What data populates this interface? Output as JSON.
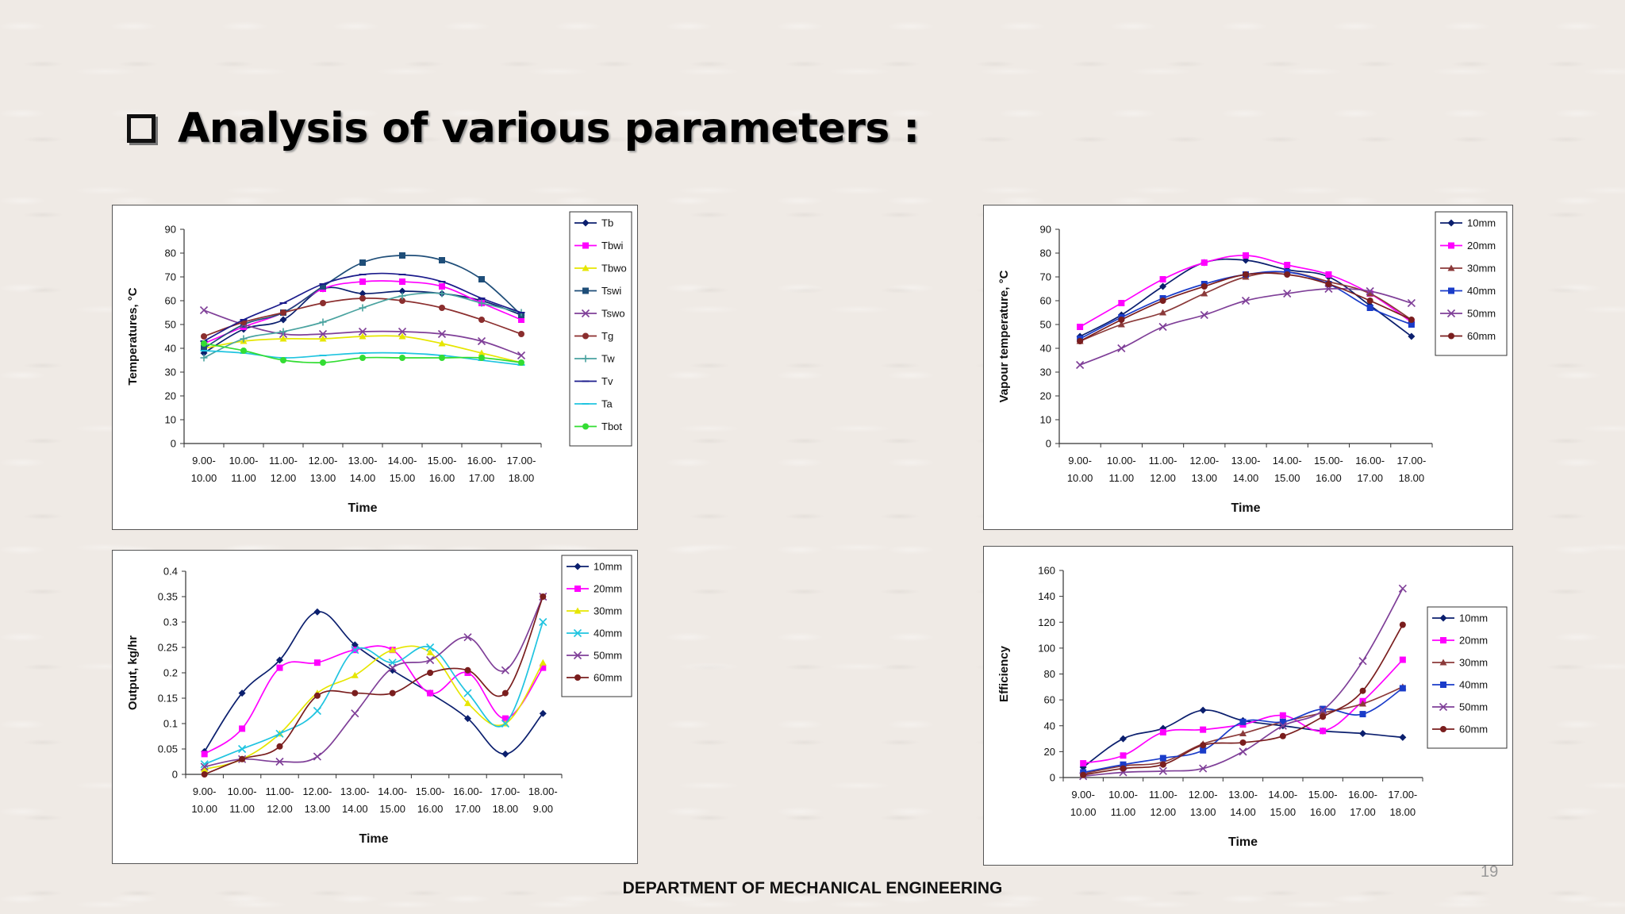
{
  "slide": {
    "title": "Analysis of various parameters :",
    "footer": "DEPARTMENT OF MECHANICAL ENGINEERING",
    "page_number": "19"
  },
  "chart_data": [
    {
      "id": "temps",
      "type": "line",
      "ylabel": "Temperatures, °C",
      "xlabel": "Time",
      "ylim": [
        0,
        90
      ],
      "yticks": [
        0,
        10,
        20,
        30,
        40,
        50,
        60,
        70,
        80,
        90
      ],
      "categories": [
        "9.00-10.00",
        "10.00-11.00",
        "11.00-12.00",
        "12.00-13.00",
        "13.00-14.00",
        "14.00-15.00",
        "15.00-16.00",
        "16.00-17.00",
        "17.00-18.00"
      ],
      "legend_position": "right",
      "series": [
        {
          "name": "Tb",
          "color": "#0b1f6e",
          "marker": "diamond",
          "values": [
            38,
            48,
            52,
            65,
            63,
            64,
            63,
            60,
            54
          ]
        },
        {
          "name": "Tbwi",
          "color": "#ff00ff",
          "marker": "square",
          "values": [
            42,
            49,
            55,
            65,
            68,
            68,
            66,
            59,
            52
          ]
        },
        {
          "name": "Tbwo",
          "color": "#e6e600",
          "marker": "triangle",
          "values": [
            40,
            43,
            44,
            44,
            45,
            45,
            42,
            38,
            34
          ]
        },
        {
          "name": "Tswi",
          "color": "#1f4e79",
          "marker": "square",
          "values": [
            40,
            50,
            55,
            66,
            76,
            79,
            77,
            69,
            54
          ]
        },
        {
          "name": "Tswo",
          "color": "#7f3f98",
          "marker": "x",
          "values": [
            56,
            50,
            46,
            46,
            47,
            47,
            46,
            43,
            37
          ]
        },
        {
          "name": "Tg",
          "color": "#8b2e2e",
          "marker": "circle",
          "values": [
            45,
            51,
            55,
            59,
            61,
            60,
            57,
            52,
            46
          ]
        },
        {
          "name": "Tw",
          "color": "#4aa3a0",
          "marker": "plus",
          "values": [
            36,
            44,
            47,
            51,
            57,
            62,
            63,
            59,
            55
          ]
        },
        {
          "name": "Tv",
          "color": "#1c1c8c",
          "marker": "dash",
          "values": [
            43,
            52,
            59,
            67,
            71,
            71,
            68,
            61,
            55
          ]
        },
        {
          "name": "Ta",
          "color": "#20c4e0",
          "marker": "dash",
          "values": [
            39,
            38,
            36,
            37,
            38,
            38,
            37,
            35,
            33
          ]
        },
        {
          "name": "Tbot",
          "color": "#33dd33",
          "marker": "circle",
          "values": [
            42,
            39,
            35,
            34,
            36,
            36,
            36,
            36,
            34
          ]
        }
      ]
    },
    {
      "id": "vapour",
      "type": "line",
      "ylabel": "Vapour temperature, °C",
      "xlabel": "Time",
      "ylim": [
        0,
        90
      ],
      "yticks": [
        0,
        10,
        20,
        30,
        40,
        50,
        60,
        70,
        80,
        90
      ],
      "categories": [
        "9.00-10.00",
        "10.00-11.00",
        "11.00-12.00",
        "12.00-13.00",
        "13.00-14.00",
        "14.00-15.00",
        "15.00-16.00",
        "16.00-17.00",
        "17.00-18.00"
      ],
      "legend_position": "right",
      "series": [
        {
          "name": "10mm",
          "color": "#0b1f6e",
          "marker": "diamond",
          "values": [
            45,
            54,
            66,
            76,
            77,
            73,
            70,
            58,
            45
          ]
        },
        {
          "name": "20mm",
          "color": "#ff00ff",
          "marker": "square",
          "values": [
            49,
            59,
            69,
            76,
            79,
            75,
            71,
            63,
            51
          ]
        },
        {
          "name": "30mm",
          "color": "#8b3a3a",
          "marker": "triangle",
          "values": [
            43,
            50,
            55,
            63,
            70,
            72,
            68,
            63,
            52
          ]
        },
        {
          "name": "40mm",
          "color": "#1a3cc9",
          "marker": "square",
          "values": [
            44,
            53,
            61,
            67,
            71,
            72,
            67,
            57,
            50
          ]
        },
        {
          "name": "50mm",
          "color": "#7f3f98",
          "marker": "x",
          "values": [
            33,
            40,
            49,
            54,
            60,
            63,
            65,
            64,
            59
          ]
        },
        {
          "name": "60mm",
          "color": "#7a1e1e",
          "marker": "circle",
          "values": [
            43,
            52,
            60,
            66,
            71,
            71,
            67,
            60,
            52
          ]
        }
      ]
    },
    {
      "id": "output",
      "type": "line",
      "ylabel": "Output, kg/hr",
      "xlabel": "Time",
      "ylim": [
        0,
        0.4
      ],
      "yticks": [
        0,
        0.05,
        0.1,
        0.15,
        0.2,
        0.25,
        0.3,
        0.35,
        0.4
      ],
      "ytick_labels": [
        "0",
        "0.05",
        "0.1",
        "0.15",
        "0.2",
        "0.25",
        "0.3",
        "0.35",
        "0.4"
      ],
      "categories": [
        "9.00-10.00",
        "10.00-11.00",
        "11.00-12.00",
        "12.00-13.00",
        "13.00-14.00",
        "14.00-15.00",
        "15.00-16.00",
        "16.00-17.00",
        "17.00-18.00",
        "18.00-9.00"
      ],
      "legend_position": "right",
      "series": [
        {
          "name": "10mm",
          "color": "#0b1f6e",
          "marker": "diamond",
          "values": [
            0.045,
            0.16,
            0.225,
            0.32,
            0.255,
            0.205,
            0.16,
            0.11,
            0.04,
            0.12
          ]
        },
        {
          "name": "20mm",
          "color": "#ff00ff",
          "marker": "square",
          "values": [
            0.04,
            0.09,
            0.21,
            0.22,
            0.245,
            0.245,
            0.16,
            0.2,
            0.11,
            0.21
          ]
        },
        {
          "name": "30mm",
          "color": "#e6e600",
          "marker": "triangle",
          "values": [
            0.01,
            0.03,
            0.08,
            0.16,
            0.195,
            0.245,
            0.24,
            0.14,
            0.1,
            0.22
          ]
        },
        {
          "name": "40mm",
          "color": "#20c4e0",
          "marker": "x",
          "values": [
            0.02,
            0.05,
            0.08,
            0.125,
            0.245,
            0.22,
            0.25,
            0.16,
            0.1,
            0.3
          ]
        },
        {
          "name": "50mm",
          "color": "#7f3f98",
          "marker": "x",
          "values": [
            0.015,
            0.03,
            0.025,
            0.035,
            0.12,
            0.21,
            0.225,
            0.27,
            0.205,
            0.35
          ]
        },
        {
          "name": "60mm",
          "color": "#7a1e1e",
          "marker": "circle",
          "values": [
            0.0,
            0.03,
            0.055,
            0.155,
            0.16,
            0.16,
            0.2,
            0.205,
            0.16,
            0.35
          ]
        }
      ]
    },
    {
      "id": "efficiency",
      "type": "line",
      "ylabel": "Efficiency",
      "xlabel": "Time",
      "ylim": [
        0,
        160
      ],
      "yticks": [
        0,
        20,
        40,
        60,
        80,
        100,
        120,
        140,
        160
      ],
      "categories": [
        "9.00-10.00",
        "10.00-11.00",
        "11.00-12.00",
        "12.00-13.00",
        "13.00-14.00",
        "14.00-15.00",
        "15.00-16.00",
        "16.00-17.00",
        "17.00-18.00"
      ],
      "legend_position": "right",
      "series": [
        {
          "name": "10mm",
          "color": "#0b1f6e",
          "marker": "diamond",
          "values": [
            8,
            30,
            38,
            52,
            44,
            40,
            36,
            34,
            31
          ]
        },
        {
          "name": "20mm",
          "color": "#ff00ff",
          "marker": "square",
          "values": [
            11,
            17,
            35,
            37,
            41,
            48,
            36,
            59,
            91
          ]
        },
        {
          "name": "30mm",
          "color": "#8b3a3a",
          "marker": "triangle",
          "values": [
            3,
            9,
            12,
            26,
            34,
            43,
            50,
            57,
            70
          ]
        },
        {
          "name": "40mm",
          "color": "#1a3cc9",
          "marker": "square",
          "values": [
            4,
            10,
            15,
            21,
            43,
            43,
            53,
            49,
            69
          ]
        },
        {
          "name": "50mm",
          "color": "#7f3f98",
          "marker": "x",
          "values": [
            1,
            4,
            5,
            7,
            20,
            40,
            52,
            90,
            146
          ]
        },
        {
          "name": "60mm",
          "color": "#7a1e1e",
          "marker": "circle",
          "values": [
            2,
            7,
            10,
            25,
            27,
            32,
            47,
            67,
            118
          ]
        }
      ]
    }
  ]
}
